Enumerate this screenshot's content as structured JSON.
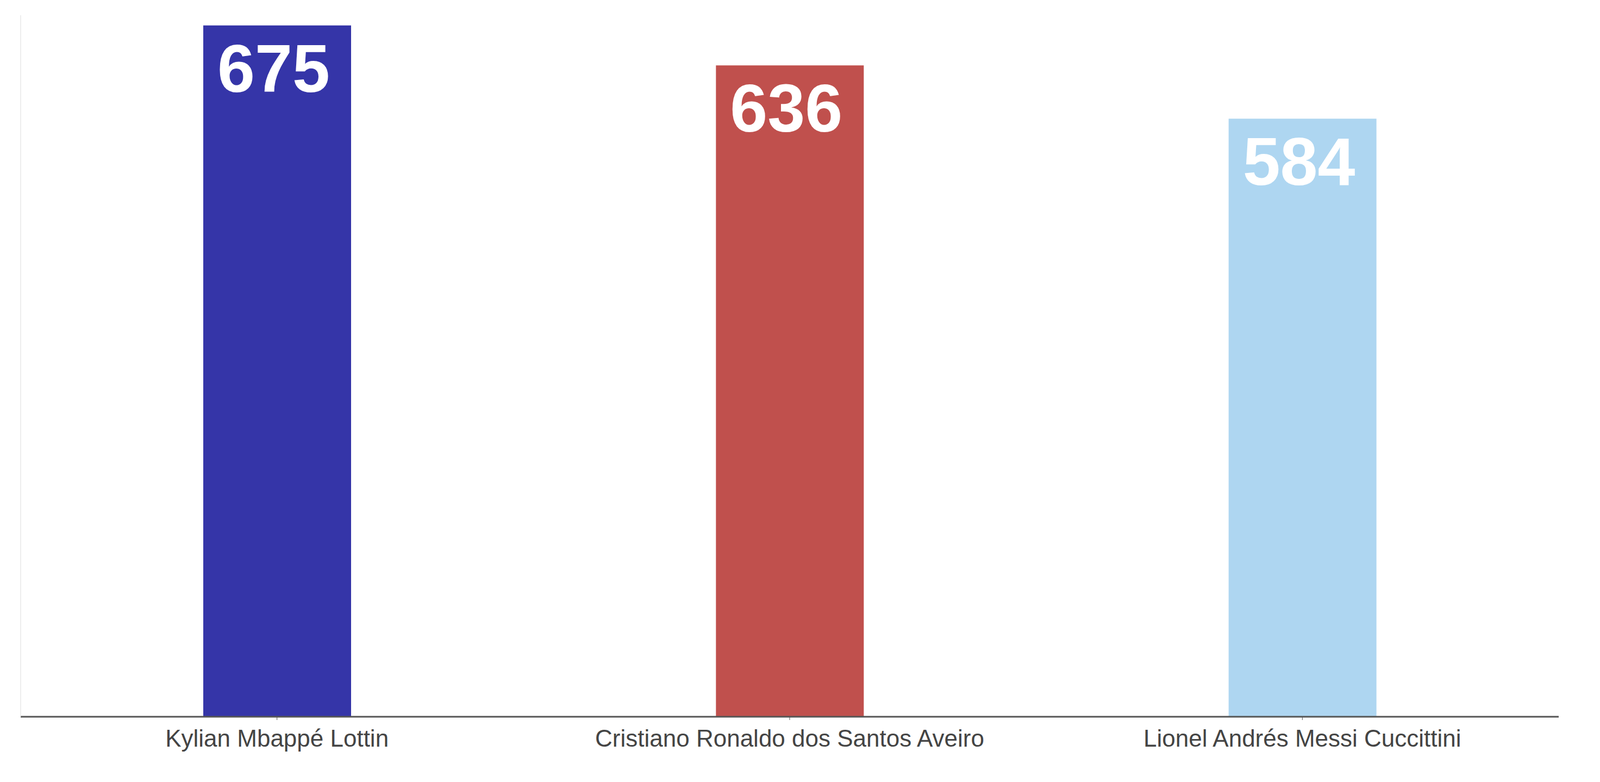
{
  "chart_data": {
    "type": "bar",
    "categories": [
      "Kylian Mbappé Lottin",
      "Cristiano Ronaldo dos Santos Aveiro",
      "Lionel Andrés Messi Cuccittini"
    ],
    "values": [
      675,
      636,
      584
    ],
    "colors": [
      "#3535a8",
      "#c0504d",
      "#aed6f1"
    ],
    "ylim": [
      0,
      685
    ],
    "grid": false,
    "data_labels": true,
    "tick_labels": "x"
  }
}
